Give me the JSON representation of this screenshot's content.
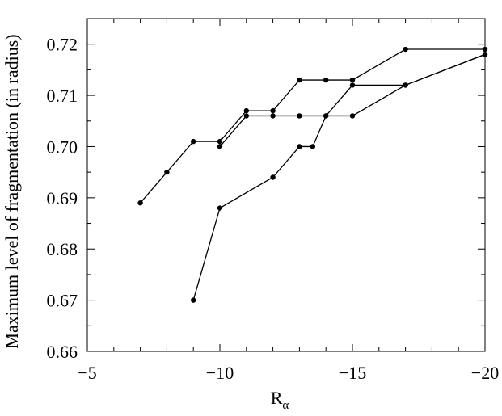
{
  "chart_data": {
    "type": "line",
    "title": "",
    "xlabel": "R",
    "xlabel_subscript": "α",
    "ylabel": "Maximum level of fragmentation (in radius)",
    "xlim": [
      -5,
      -20
    ],
    "ylim": [
      0.66,
      0.725
    ],
    "x_ticks": [
      -5,
      -10,
      -15,
      -20
    ],
    "x_tick_labels": [
      "−5",
      "−10",
      "−15",
      "−20"
    ],
    "y_ticks": [
      0.66,
      0.67,
      0.68,
      0.69,
      0.7,
      0.71,
      0.72
    ],
    "y_tick_labels": [
      "0.66",
      "0.67",
      "0.68",
      "0.69",
      "0.70",
      "0.71",
      "0.72"
    ],
    "grid": false,
    "legend": "none",
    "series": [
      {
        "points": [
          [
            -7,
            0.689
          ],
          [
            -8,
            0.695
          ],
          [
            -9,
            0.701
          ],
          [
            -10,
            0.701
          ],
          [
            -11,
            0.707
          ],
          [
            -12,
            0.707
          ],
          [
            -13,
            0.713
          ],
          [
            -14,
            0.713
          ],
          [
            -15,
            0.713
          ],
          [
            -17,
            0.719
          ],
          [
            -20,
            0.719
          ]
        ]
      },
      {
        "points": [
          [
            -10,
            0.7
          ],
          [
            -11,
            0.706
          ],
          [
            -12,
            0.706
          ],
          [
            -13,
            0.706
          ],
          [
            -14,
            0.706
          ],
          [
            -15,
            0.706
          ],
          [
            -17,
            0.712
          ],
          [
            -20,
            0.718
          ]
        ]
      },
      {
        "points": [
          [
            -9,
            0.67
          ],
          [
            -10,
            0.688
          ],
          [
            -12,
            0.694
          ],
          [
            -13,
            0.7
          ],
          [
            -13.5,
            0.7
          ],
          [
            -14,
            0.706
          ],
          [
            -15,
            0.712
          ],
          [
            -17,
            0.712
          ],
          [
            -20,
            0.718
          ]
        ]
      }
    ],
    "colors": {
      "line": "#000000",
      "marker": "#000000",
      "frame": "#000000"
    }
  }
}
